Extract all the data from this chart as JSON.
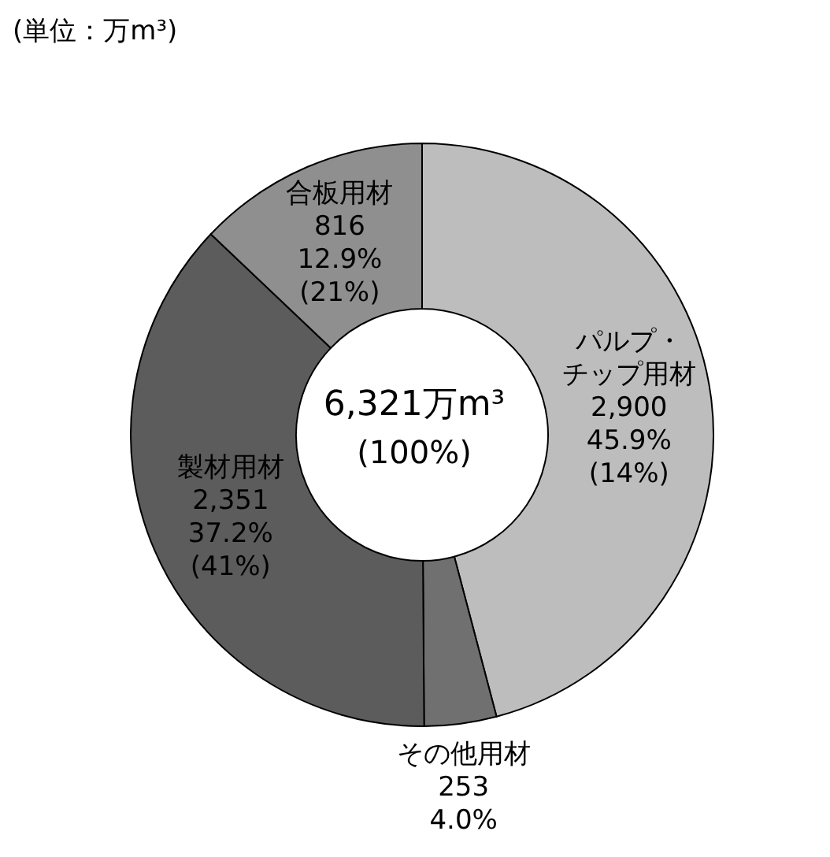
{
  "chart_data": {
    "type": "donut",
    "categories": [
      "パルプ・チップ用材",
      "その他用材",
      "製材用材",
      "合板用材"
    ],
    "values": [
      2900,
      253,
      2351,
      816
    ],
    "colors": [
      "#bdbdbd",
      "#707070",
      "#5c5c5c",
      "#8f8f8f"
    ],
    "value_labels": [
      "2,900\n45.9%\n(14%)",
      "253\n4.0%",
      "2,351\n37.2%\n(41%)",
      "816\n12.9%\n(21%)"
    ],
    "annotations": [
      "(単位：万m³)",
      "6,321万m³",
      "(100%)"
    ],
    "legend": false
  }
}
